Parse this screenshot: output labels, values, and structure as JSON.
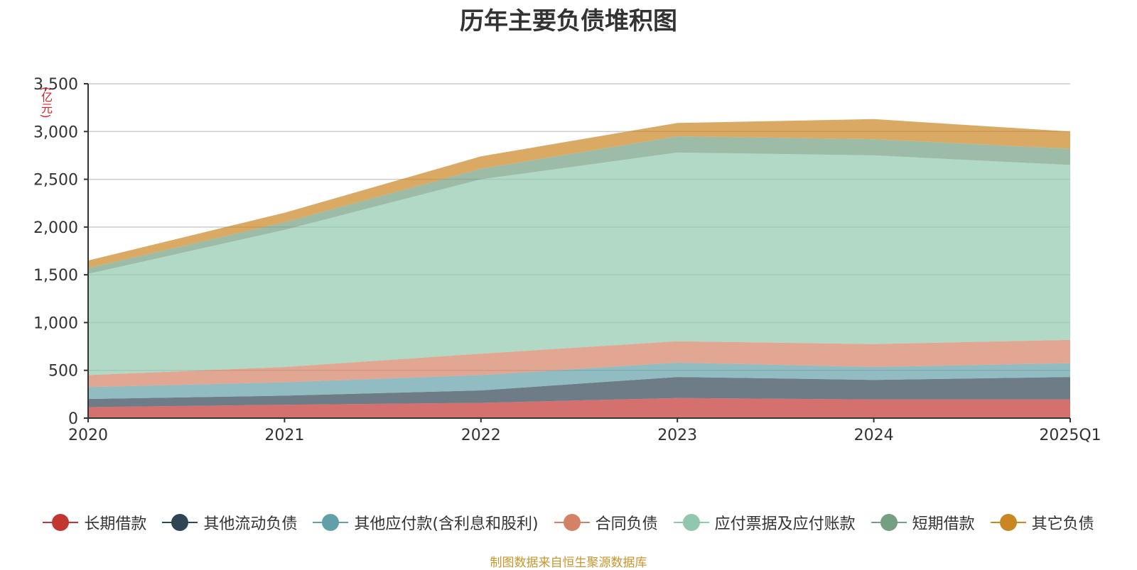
{
  "chart_data": {
    "type": "area",
    "stacked": true,
    "title": "历年主要负债堆积图",
    "unit_label": "(亿元)",
    "x": [
      "2020",
      "2021",
      "2022",
      "2023",
      "2024",
      "2025Q1"
    ],
    "ylim": [
      0,
      3500
    ],
    "yticks": [
      0,
      500,
      1000,
      1500,
      2000,
      2500,
      3000,
      3500
    ],
    "ytick_labels": [
      "0",
      "500",
      "1,000",
      "1,500",
      "2,000",
      "2,500",
      "3,000",
      "3,500"
    ],
    "grid": true,
    "legend_position": "bottom",
    "series": [
      {
        "name": "长期借款",
        "color": "#c23531",
        "values": [
          115,
          140,
          160,
          210,
          195,
          195
        ]
      },
      {
        "name": "其他流动负债",
        "color": "#2f4554",
        "values": [
          85,
          95,
          130,
          220,
          205,
          235
        ]
      },
      {
        "name": "其他应付款(含利息和股利)",
        "color": "#61a0a8",
        "values": [
          125,
          140,
          160,
          150,
          135,
          145
        ]
      },
      {
        "name": "合同负债",
        "color": "#d48265",
        "values": [
          125,
          160,
          225,
          225,
          240,
          245
        ]
      },
      {
        "name": "应付票据及应付账款",
        "color": "#91c7ae",
        "values": [
          1060,
          1435,
          1825,
          1975,
          1975,
          1830
        ]
      },
      {
        "name": "短期借款",
        "color": "#749f83",
        "values": [
          60,
          80,
          110,
          170,
          170,
          170
        ]
      },
      {
        "name": "其它负债",
        "color": "#ca8622",
        "values": [
          80,
          100,
          130,
          140,
          210,
          180
        ]
      }
    ]
  },
  "source_note": "制图数据来自恒生聚源数据库"
}
